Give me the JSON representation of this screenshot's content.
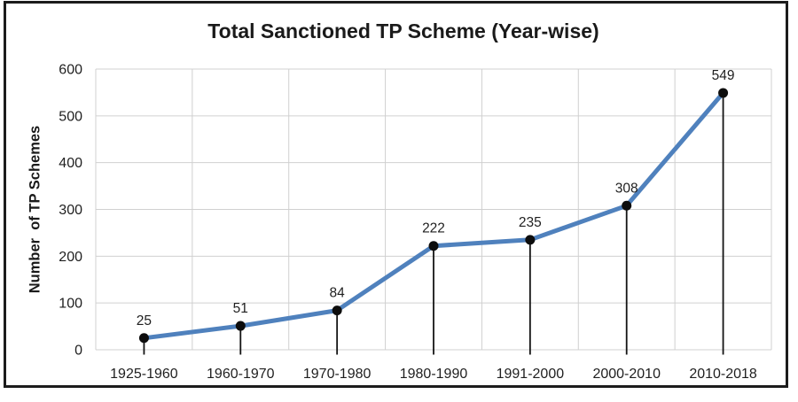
{
  "frame": {
    "border_color": "#1c1c1c",
    "background_color": "#ffffff"
  },
  "chart_data": {
    "type": "line",
    "title": "Total Sanctioned TP Scheme (Year-wise)",
    "ylabel": "Number  of TP Schemes",
    "xlabel": "",
    "categories": [
      "1925-1960",
      "1960-1970",
      "1970-1980",
      "1980-1990",
      "1991-2000",
      "2000-2010",
      "2010-2018"
    ],
    "series": [
      {
        "name": "Total Sanctioned TP Scheme",
        "values": [
          25,
          51,
          84,
          222,
          235,
          308,
          549
        ]
      }
    ],
    "data_labels_shown": true,
    "ylim": [
      0,
      600
    ],
    "yticks": [
      0,
      100,
      200,
      300,
      400,
      500,
      600
    ],
    "grid": "both",
    "legend": "none",
    "drop_lines": true,
    "marker_shape": "circle",
    "styles": {
      "line_color": "#4f81bd",
      "marker_color": "#0d0d0d",
      "drop_line_color": "#141414",
      "gridline_color": "#d0d0d0",
      "text_color": "#1f1f1f"
    }
  }
}
